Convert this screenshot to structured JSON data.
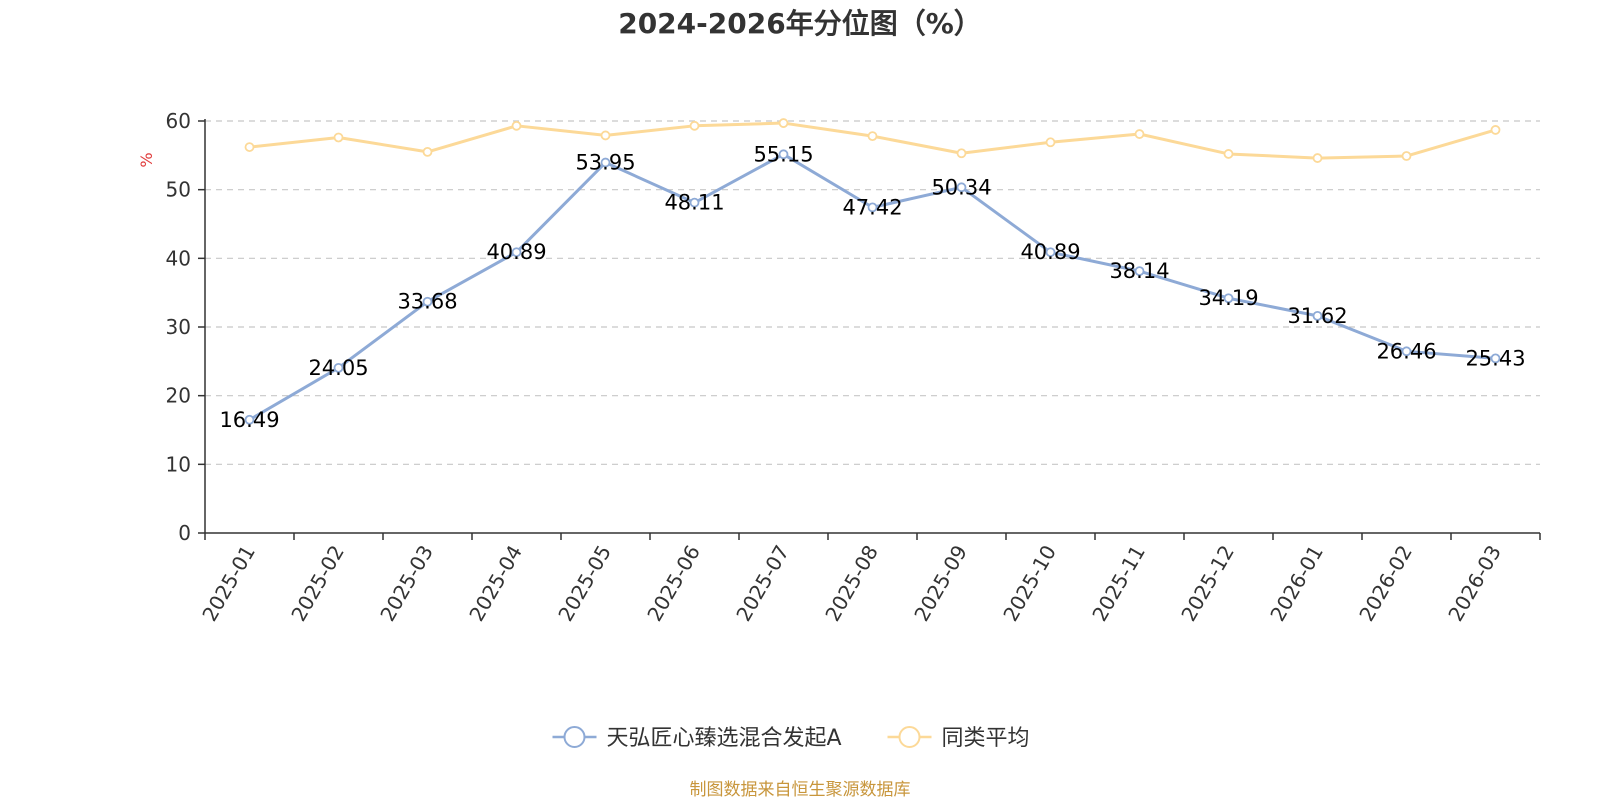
{
  "chart_data": {
    "type": "line",
    "title": "2024-2026年分位图（%）",
    "ylabel": "%",
    "ylim": [
      0,
      60
    ],
    "yticks": [
      0,
      10,
      20,
      30,
      40,
      50,
      60
    ],
    "grid": true,
    "legend_position": "bottom",
    "categories": [
      "2025-01",
      "2025-02",
      "2025-03",
      "2025-04",
      "2025-05",
      "2025-06",
      "2025-07",
      "2025-08",
      "2025-09",
      "2025-10",
      "2025-11",
      "2025-12",
      "2026-01",
      "2026-02",
      "2026-03"
    ],
    "series": [
      {
        "name": "天弘匠心臻选混合发起A",
        "color": "#8eaad6",
        "show_labels": true,
        "values": [
          16.49,
          24.05,
          33.68,
          40.89,
          53.95,
          48.11,
          55.15,
          47.42,
          50.34,
          40.89,
          38.14,
          34.19,
          31.62,
          26.46,
          25.43
        ]
      },
      {
        "name": "同类平均",
        "color": "#fcd998",
        "show_labels": false,
        "values": [
          56.2,
          57.6,
          55.5,
          59.3,
          57.9,
          59.3,
          59.7,
          57.8,
          55.3,
          56.9,
          58.1,
          55.2,
          54.6,
          54.9,
          58.7
        ]
      }
    ]
  },
  "source_text": "制图数据来自恒生聚源数据库"
}
